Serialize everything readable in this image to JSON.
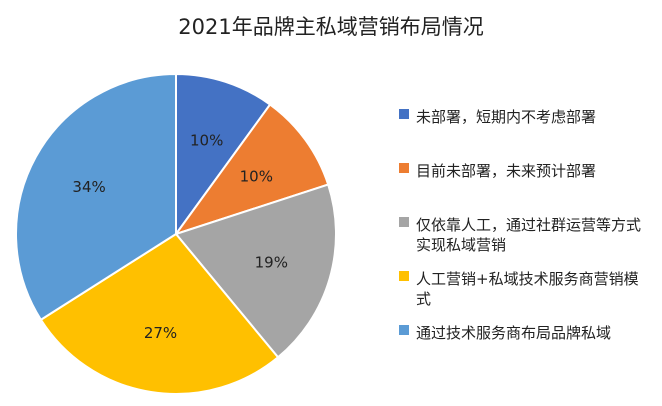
{
  "chart_data": {
    "type": "pie",
    "title": "2021年品牌主私域营销布局情况",
    "legend_position": "right",
    "start_angle": "12 o'clock",
    "direction": "clockwise",
    "slices": [
      {
        "label": "未部署，短期内不考虑部署",
        "value": 10,
        "value_label": "10%",
        "color": "#4472C4"
      },
      {
        "label": "目前未部署，未来预计部署",
        "value": 10,
        "value_label": "10%",
        "color": "#ED7D31"
      },
      {
        "label": "仅依靠人工，通过社群运营等方式实现私域营销",
        "value": 19,
        "value_label": "19%",
        "color": "#A5A5A5"
      },
      {
        "label": "人工营销+私域技术服务商营销模式",
        "value": 27,
        "value_label": "27%",
        "color": "#FFC000"
      },
      {
        "label": "通过技术服务商布局品牌私域",
        "value": 34,
        "value_label": "34%",
        "color": "#5B9BD5"
      }
    ]
  }
}
